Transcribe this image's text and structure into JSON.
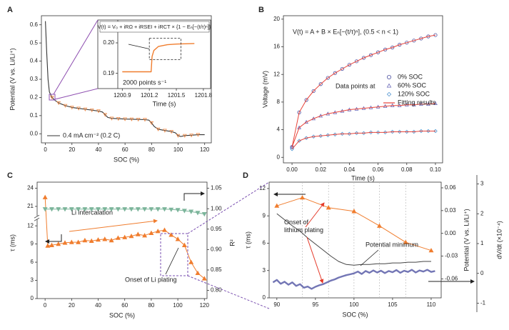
{
  "chart_data": [
    {
      "panel_label": "A",
      "type": "line",
      "xlabel": "SOC (%)",
      "ylabel": "Potential (V vs. Li/Li⁺)",
      "xlim": [
        -3,
        125
      ],
      "ylim": [
        -0.05,
        0.65
      ],
      "xticks": [
        0,
        20,
        40,
        60,
        80,
        100,
        120
      ],
      "yticks": [
        {
          "value": 0,
          "label": "0.0"
        },
        0.1,
        0.2,
        0.3,
        0.4,
        0.5,
        0.6
      ],
      "legend": "lower left",
      "x": [
        0,
        1,
        2,
        3,
        5,
        7,
        10,
        15,
        20,
        25,
        30,
        35,
        40,
        43,
        45,
        47,
        50,
        55,
        60,
        65,
        70,
        75,
        78,
        80,
        82,
        85,
        90,
        95,
        98,
        100,
        102,
        105,
        110,
        115,
        120
      ],
      "series": [
        {
          "name": "0.4 mA cm⁻² (0.2 C)",
          "color": "#333333",
          "values": [
            0.62,
            0.45,
            0.3,
            0.23,
            0.2,
            0.185,
            0.17,
            0.155,
            0.145,
            0.14,
            0.135,
            0.13,
            0.125,
            0.12,
            0.105,
            0.09,
            0.085,
            0.083,
            0.081,
            0.08,
            0.079,
            0.078,
            0.075,
            0.06,
            0.04,
            0.025,
            0.018,
            0.012,
            0.005,
            -0.01,
            -0.015,
            -0.01,
            -0.008,
            -0.005,
            -0.005
          ]
        },
        {
          "color": "#f08c4a",
          "marker": "triangle-down",
          "x": [
            5,
            10,
            15,
            20,
            25,
            30,
            35,
            40,
            45,
            50,
            55,
            60,
            65,
            70,
            75,
            80,
            85,
            90,
            95,
            100,
            105,
            110,
            115
          ],
          "values": [
            0.2,
            0.17,
            0.155,
            0.145,
            0.14,
            0.135,
            0.13,
            0.125,
            0.105,
            0.085,
            0.083,
            0.081,
            0.08,
            0.079,
            0.078,
            0.06,
            0.025,
            0.018,
            0.012,
            -0.01,
            -0.01,
            -0.008,
            -0.005
          ]
        }
      ],
      "inset": {
        "type": "line",
        "xlabel": "Time (s)",
        "equation": "V(t) = V₀ + iRΩ + iRSEI + iRCT × {1 − Eₙ[−(t/τ)ⁿ]}",
        "annotation": "2000 points s⁻¹",
        "xlim": [
          1200.85,
          1201.88
        ],
        "ylim": [
          0.185,
          0.2075
        ],
        "xticks": [
          1200.9,
          1201.2,
          1201.5,
          1201.8
        ],
        "yticks": [
          0.19,
          {
            "value": 0.2,
            "label": "0.20"
          }
        ],
        "x": [
          1200.9,
          1201.0,
          1201.1,
          1201.2,
          1201.22,
          1201.23,
          1201.25,
          1201.3,
          1201.4,
          1201.5,
          1201.6,
          1201.7
        ],
        "series": [
          {
            "color": "#f07d2e",
            "values": [
              0.1905,
              0.1905,
              0.1905,
              0.1905,
              0.1905,
              0.1955,
              0.1975,
              0.1988,
              0.1994,
              0.1996,
              0.1997,
              0.1998
            ]
          }
        ]
      }
    },
    {
      "panel_label": "B",
      "type": "scatter",
      "xlabel": "Time (s)",
      "ylabel": "Voltage (mV)",
      "equation": "V(t) = A + B × Eₙ[−(t/τ)ⁿ], (0.5 < n < 1)",
      "legend_title": "Data points at",
      "xlim": [
        -0.006,
        0.105
      ],
      "ylim": [
        -0.8,
        20.5
      ],
      "xticks": [
        {
          "value": 0,
          "label": "0.00"
        },
        0.02,
        0.04,
        0.06,
        0.08,
        {
          "value": 0.1,
          "label": "0.10"
        }
      ],
      "yticks": [
        0,
        4,
        8,
        12,
        16,
        20
      ],
      "x": [
        0,
        0.005,
        0.01,
        0.015,
        0.02,
        0.025,
        0.03,
        0.035,
        0.04,
        0.045,
        0.05,
        0.055,
        0.06,
        0.065,
        0.07,
        0.075,
        0.08,
        0.085,
        0.09,
        0.095,
        0.1
      ],
      "series": [
        {
          "name": "0% SOC",
          "color": "#4b4fa0",
          "marker": "circle",
          "values": [
            1.5,
            6.5,
            8.3,
            9.6,
            10.6,
            11.5,
            12.2,
            12.8,
            13.4,
            13.9,
            14.4,
            14.8,
            15.2,
            15.6,
            15.9,
            16.3,
            16.6,
            16.9,
            17.2,
            17.5,
            17.7
          ]
        },
        {
          "name": "60% SOC",
          "color": "#6a68b8",
          "marker": "triangle",
          "values": [
            1.5,
            4.3,
            5.1,
            5.6,
            6.0,
            6.3,
            6.5,
            6.7,
            6.9,
            7.0,
            7.1,
            7.2,
            7.3,
            7.4,
            7.5,
            7.5,
            7.6,
            7.6,
            7.7,
            7.7,
            7.8
          ]
        },
        {
          "name": "120% SOC",
          "color": "#4f93d0",
          "marker": "diamond",
          "values": [
            1.2,
            2.4,
            2.8,
            3.0,
            3.1,
            3.2,
            3.3,
            3.4,
            3.4,
            3.5,
            3.5,
            3.6,
            3.6,
            3.6,
            3.7,
            3.7,
            3.7,
            3.7,
            3.8,
            3.8,
            3.8
          ]
        },
        {
          "name": "Fitting results",
          "color": "#e8443a",
          "curves": [
            [
              1.5,
              6.5,
              8.3,
              9.6,
              10.6,
              11.5,
              12.2,
              12.8,
              13.4,
              13.9,
              14.4,
              14.8,
              15.2,
              15.6,
              15.9,
              16.3,
              16.6,
              16.9,
              17.2,
              17.5,
              17.7
            ],
            [
              1.5,
              4.3,
              5.1,
              5.6,
              6.0,
              6.3,
              6.5,
              6.7,
              6.9,
              7.0,
              7.1,
              7.2,
              7.3,
              7.4,
              7.5,
              7.5,
              7.6,
              7.6,
              7.7,
              7.7,
              7.8
            ],
            [
              1.2,
              2.4,
              2.8,
              3.0,
              3.1,
              3.2,
              3.3,
              3.4,
              3.4,
              3.5,
              3.5,
              3.6,
              3.6,
              3.6,
              3.7,
              3.7,
              3.7,
              3.7,
              3.8,
              3.8,
              3.8
            ]
          ]
        }
      ]
    },
    {
      "panel_label": "C",
      "type": "line",
      "xlabel": "SOC (%)",
      "ylabel": "τ (ms)",
      "y2label": "R²",
      "xlim": [
        -6,
        122
      ],
      "ylim": [
        0,
        25
      ],
      "ybreak": [
        13,
        19.5
      ],
      "y2lim": [
        0.78,
        1.065
      ],
      "xticks": [
        0,
        20,
        40,
        60,
        80,
        100,
        120
      ],
      "yticks": [
        0,
        3,
        6,
        9,
        12,
        21,
        24
      ],
      "y2ticks": [
        {
          "value": 0.8,
          "label": "0.80"
        },
        0.85,
        {
          "value": 0.9,
          "label": "0.90"
        },
        0.95,
        {
          "value": 1,
          "label": "1.00"
        },
        1.05
      ],
      "annotations": [
        "Li intercalation",
        "Onset of Li plating"
      ],
      "series": [
        {
          "color": "#f07d2e",
          "marker": "triangle",
          "x": [
            0,
            2,
            5,
            10,
            15,
            20,
            25,
            30,
            35,
            40,
            45,
            50,
            55,
            60,
            65,
            70,
            75,
            80,
            85,
            90,
            95,
            100,
            105,
            110,
            115,
            120
          ],
          "values": [
            22.5,
            8.7,
            8.8,
            9.0,
            9.2,
            9.3,
            9.3,
            9.6,
            9.5,
            9.7,
            9.8,
            9.6,
            10.0,
            10.1,
            10.3,
            10.6,
            10.4,
            10.8,
            11.1,
            11.3,
            10.5,
            9.8,
            8.8,
            6.0,
            4.2,
            3.3
          ]
        },
        {
          "color": "#7cb59b",
          "marker": "triangle-down",
          "axis": "y2",
          "x": [
            0,
            5,
            10,
            15,
            20,
            25,
            30,
            35,
            40,
            45,
            50,
            55,
            60,
            65,
            70,
            75,
            80,
            85,
            90,
            95,
            100,
            105,
            110,
            115,
            120
          ],
          "values": [
            0.999,
            0.999,
            0.999,
            0.999,
            0.999,
            0.999,
            0.999,
            0.999,
            0.999,
            0.999,
            0.999,
            0.999,
            0.999,
            0.999,
            0.999,
            0.999,
            0.999,
            0.999,
            0.999,
            0.998,
            0.997,
            0.995,
            0.993,
            0.99,
            0.987
          ]
        }
      ]
    },
    {
      "panel_label": "D",
      "type": "line",
      "xlabel": "SOC (%)",
      "ylabel": "τ (ms)",
      "y2label": "Potential (V vs. Li/Li⁺)",
      "y3label": "dV/dt (×10⁻⁴)",
      "xlim": [
        89,
        111.3
      ],
      "ylim": [
        0,
        12.7
      ],
      "y2lim": [
        -0.085,
        0.0675
      ],
      "y3lim": [
        -1.3,
        3.3
      ],
      "xticks": [
        90,
        95,
        100,
        105,
        110
      ],
      "yticks": [
        0,
        3,
        6,
        9,
        12
      ],
      "y2ticks": [
        -0.06,
        -0.03,
        {
          "value": 0,
          "label": "0.00"
        },
        0.03,
        0.06
      ],
      "y3ticks": [
        -1,
        0,
        1,
        2,
        3
      ],
      "annotations": [
        [
          "Onset of",
          "lithium plating"
        ],
        "Potential minimum"
      ],
      "series": [
        {
          "color": "#f07d2e",
          "marker": "triangle",
          "x": [
            90,
            93.3,
            96.7,
            100,
            103.3,
            106.7,
            110
          ],
          "values": [
            10.1,
            11.0,
            9.9,
            9.5,
            7.9,
            6.1,
            5.2
          ]
        },
        {
          "color": "#444444",
          "axis": "y2",
          "x": [
            90,
            91,
            92,
            93,
            94,
            95,
            96,
            97,
            98,
            99,
            100,
            101,
            102,
            103,
            104,
            105,
            106,
            107,
            108,
            109,
            110
          ],
          "values": [
            0.026,
            0.018,
            0.01,
            0.003,
            -0.006,
            -0.014,
            -0.022,
            -0.03,
            -0.037,
            -0.041,
            -0.042,
            -0.041,
            -0.041,
            -0.04,
            -0.04,
            -0.039,
            -0.039,
            -0.038,
            -0.038,
            -0.037,
            -0.037
          ]
        },
        {
          "color": "#5b5ea8",
          "axis": "y3",
          "x": [
            89.5,
            90,
            90.5,
            91,
            91.5,
            92,
            92.5,
            93,
            93.5,
            94,
            94.5,
            95,
            95.5,
            96,
            96.5,
            97,
            97.5,
            98,
            98.5,
            99,
            99.5,
            100,
            100.5,
            101,
            101.5,
            102,
            102.5,
            103,
            103.5,
            104,
            104.5,
            105,
            105.5,
            106,
            106.5,
            107,
            107.5,
            108,
            108.5,
            109,
            109.5,
            110,
            110.5
          ],
          "values": [
            -0.3,
            -0.22,
            -0.35,
            -0.28,
            -0.38,
            -0.3,
            -0.42,
            -0.36,
            -0.48,
            -0.44,
            -0.52,
            -0.45,
            -0.4,
            -0.36,
            -0.3,
            -0.24,
            -0.2,
            -0.14,
            -0.1,
            -0.06,
            -0.03,
            0,
            0.06,
            -0.02,
            0.08,
            0.02,
            0.1,
            0.03,
            0.09,
            0.01,
            0.08,
            0.04,
            0.11,
            0.02,
            0.09,
            0.05,
            0.12,
            0.03,
            0.1,
            0.06,
            0.12,
            0.05,
            0.08
          ]
        }
      ]
    }
  ]
}
